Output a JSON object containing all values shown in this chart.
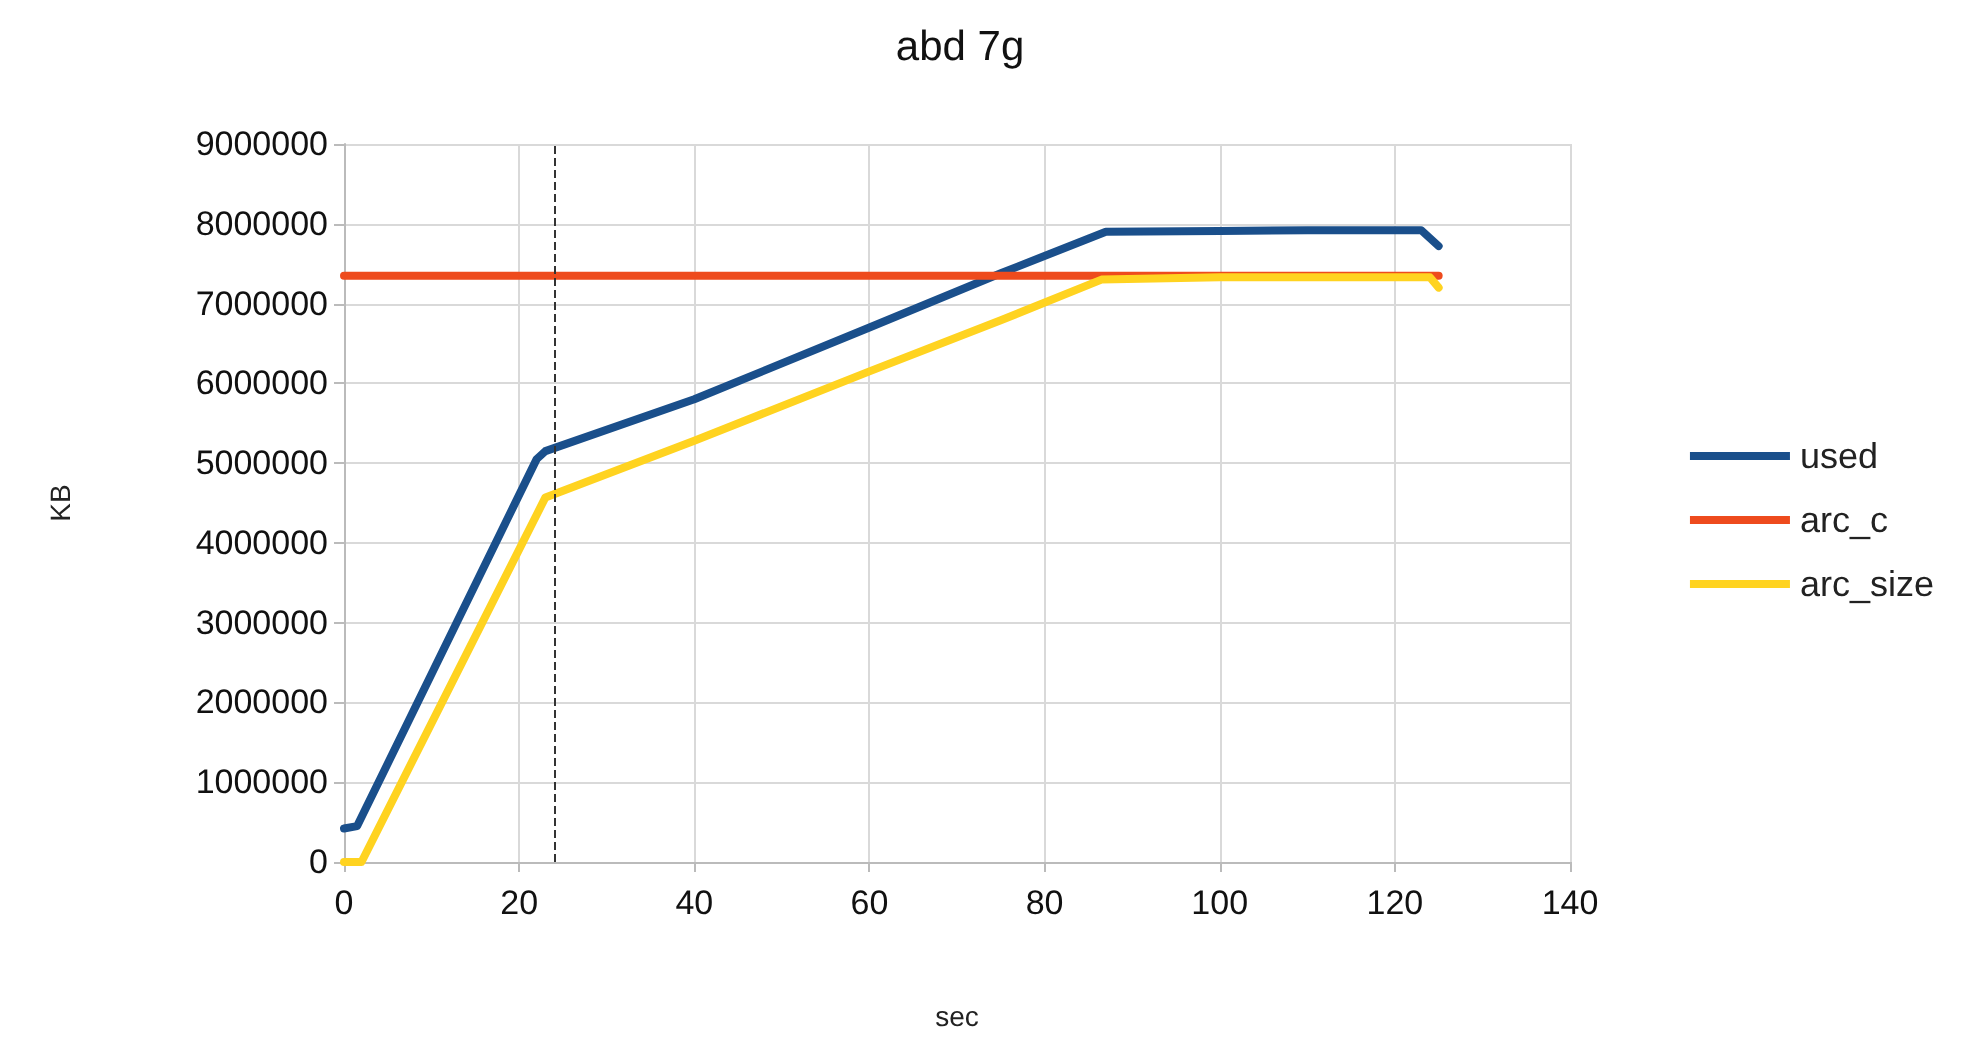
{
  "chart_data": {
    "type": "line",
    "title": "abd 7g",
    "xlabel": "sec",
    "ylabel": "KB",
    "xlim": [
      0,
      140
    ],
    "xticks": [
      0,
      20,
      40,
      60,
      80,
      100,
      120,
      140
    ],
    "ylim": [
      0,
      9000000
    ],
    "yticks": [
      0,
      1000000,
      2000000,
      3000000,
      4000000,
      5000000,
      6000000,
      7000000,
      8000000,
      9000000
    ],
    "grid": true,
    "legend": "right",
    "marker": "none",
    "line_style": "solid",
    "ref_lines": [
      {
        "axis": "x",
        "value": 24,
        "label": null,
        "color": "#333333",
        "line_style": "dashed"
      }
    ],
    "series": [
      {
        "name": "used",
        "color": "#1a4f8b",
        "x": [
          0,
          1.5,
          22,
          23,
          40,
          60,
          75,
          87,
          100,
          110,
          120,
          123,
          124,
          125
        ],
        "values": [
          420000,
          450000,
          5050000,
          5150000,
          5800000,
          6700000,
          7380000,
          7900000,
          7910000,
          7920000,
          7920000,
          7920000,
          7820000,
          7720000
        ]
      },
      {
        "name": "arc_c",
        "color": "#ee4b1d",
        "x": [
          0,
          125
        ],
        "values": [
          7350000,
          7350000
        ]
      },
      {
        "name": "arc_size",
        "color": "#ffd320",
        "x": [
          0,
          2,
          23,
          40,
          60,
          75,
          86.5,
          100,
          124,
          125
        ],
        "values": [
          0,
          0,
          4570000,
          5280000,
          6150000,
          6790000,
          7300000,
          7330000,
          7330000,
          7200000
        ]
      }
    ]
  }
}
